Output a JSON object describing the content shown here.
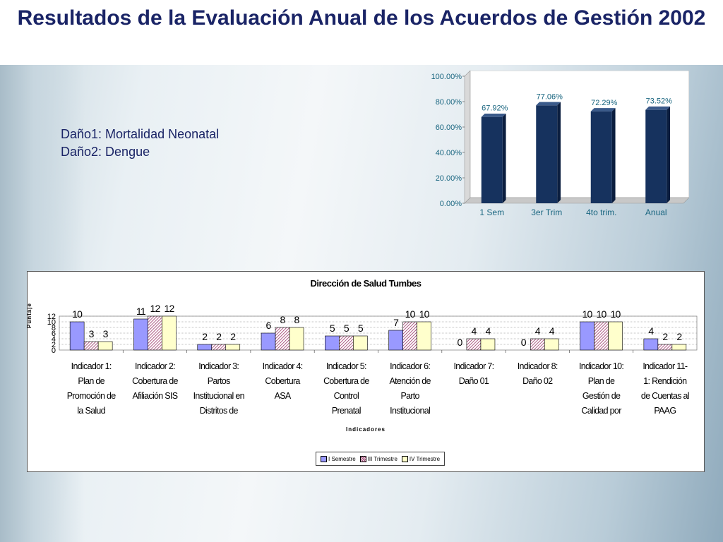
{
  "slide": {
    "title": "Resultados de la Evaluación Anual de los Acuerdos de Gestión 2002",
    "damage_legend": [
      "Daño1: Mortalidad Neonatal",
      "Daño2: Dengue"
    ]
  },
  "chart_data": [
    {
      "type": "bar",
      "categories": [
        "1 Sem",
        "3er Trim",
        "4to trim.",
        "Anual"
      ],
      "values": [
        67.92,
        77.06,
        72.29,
        73.52
      ],
      "value_labels": [
        "67.92%",
        "77.06%",
        "72.29%",
        "73.52%"
      ],
      "ylim": [
        0,
        100
      ],
      "ytick_labels": [
        "0.00%",
        "20.00%",
        "40.00%",
        "60.00%",
        "80.00%",
        "100.00%"
      ],
      "colors": {
        "bar": "#16325e",
        "labels": "#1a6680"
      }
    },
    {
      "type": "bar",
      "title": "Dirección de Salud Tumbes",
      "xlabel": "Indicadores",
      "ylabel": "Puntaje",
      "ylim": [
        0,
        12
      ],
      "ytick_labels": [
        "0",
        "2",
        "4",
        "6",
        "8",
        "10",
        "12"
      ],
      "categories": [
        "Indicador 1: Plan de Promoción de la Salud",
        "Indicador 2: Cobertura de Afiliación SIS",
        "Indicador 3: Partos Institucional en Distritos de",
        "Indicador 4: Cobertura ASA",
        "Indicador 5: Cobertura de Control Prenatal",
        "Indicador 6: Atención de Parto Institucional",
        "Indicador 7: Daño 01",
        "Indicador 8: Daño 02",
        "Indicador 10: Plan de Gestión de Calidad por",
        "Indicador 11-1: Rendición de Cuentas al PAAG"
      ],
      "category_lines": [
        [
          "Indicador 1:",
          "Plan de",
          "Promoción de",
          "la Salud"
        ],
        [
          "Indicador 2:",
          "Cobertura de",
          "Afiliación SIS"
        ],
        [
          "Indicador 3:",
          "Partos",
          "Institucional en",
          "Distritos de"
        ],
        [
          "Indicador 4:",
          "Cobertura",
          "ASA"
        ],
        [
          "Indicador 5:",
          "Cobertura de",
          "Control",
          "Prenatal"
        ],
        [
          "Indicador 6:",
          "Atención de",
          "Parto",
          "Institucional"
        ],
        [
          "Indicador 7:",
          "Daño 01"
        ],
        [
          "Indicador 8:",
          "Daño 02"
        ],
        [
          "Indicador 10:",
          "Plan de",
          "Gestión de",
          "Calidad por"
        ],
        [
          "Indicador 11-",
          "1: Rendición",
          "de Cuentas al",
          "PAAG"
        ]
      ],
      "series": [
        {
          "name": "I Semestre",
          "values": [
            10,
            11,
            2,
            6,
            5,
            7,
            0,
            0,
            10,
            4
          ],
          "color": "#9999ff",
          "pattern": "solid"
        },
        {
          "name": "III Trimestre",
          "values": [
            3,
            12,
            2,
            8,
            5,
            10,
            4,
            4,
            10,
            2
          ],
          "color": "#993366",
          "pattern": "hatch"
        },
        {
          "name": "IV Trimestre",
          "values": [
            3,
            12,
            2,
            8,
            5,
            10,
            4,
            4,
            10,
            2
          ],
          "color": "#ffffcc",
          "pattern": "solid"
        }
      ],
      "grid": true,
      "legend_position": "bottom"
    }
  ]
}
